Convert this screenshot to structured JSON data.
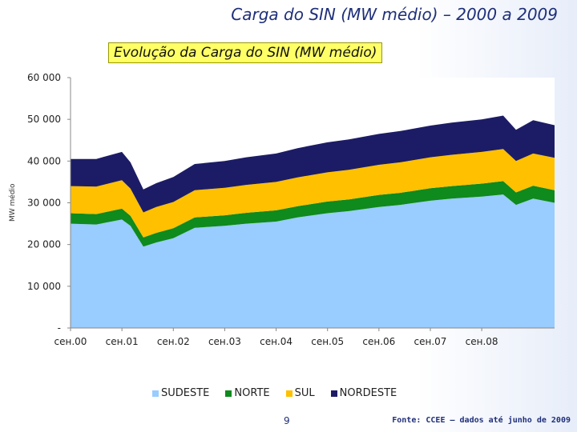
{
  "slide": {
    "title": "Carga do SIN  (MW médio) – 2000 a 2009",
    "page_number": "9",
    "footnote": "Fonte: CCEE – dados até junho de 2009"
  },
  "colors": {
    "SUDESTE": "#99ccff",
    "NORTE": "#0f8a1c",
    "SUL": "#ffc000",
    "NORDESTE": "#1c1c66"
  },
  "chart_data": {
    "type": "area",
    "stacked": true,
    "title": "Evolução da Carga do SIN  (MW médio)",
    "ylabel": "MW médio",
    "ylim": [
      0,
      60000
    ],
    "yticks": [
      {
        "value": 0,
        "label": "-"
      },
      {
        "value": 10000,
        "label": "10 000"
      },
      {
        "value": 20000,
        "label": "20 000"
      },
      {
        "value": 30000,
        "label": "30 000"
      },
      {
        "value": 40000,
        "label": "40 000"
      },
      {
        "value": 50000,
        "label": "50 000"
      },
      {
        "value": 60000,
        "label": "60 000"
      }
    ],
    "xlim": [
      "2000-01",
      "2009-06"
    ],
    "xticks": [
      {
        "date": "2000-01",
        "label": "сен.00"
      },
      {
        "date": "2001-01",
        "label": "сен.01"
      },
      {
        "date": "2002-01",
        "label": "сен.02"
      },
      {
        "date": "2003-01",
        "label": "сен.03"
      },
      {
        "date": "2004-01",
        "label": "сен.04"
      },
      {
        "date": "2005-01",
        "label": "сен.05"
      },
      {
        "date": "2006-01",
        "label": "сен.06"
      },
      {
        "date": "2007-01",
        "label": "сен.07"
      },
      {
        "date": "2008-01",
        "label": "сен.08"
      }
    ],
    "legend_position": "bottom",
    "x": [
      "2000-01",
      "2000-07",
      "2001-01",
      "2001-03",
      "2001-06",
      "2001-09",
      "2002-01",
      "2002-06",
      "2003-01",
      "2003-06",
      "2004-01",
      "2004-06",
      "2005-01",
      "2005-06",
      "2006-01",
      "2006-06",
      "2007-01",
      "2007-06",
      "2008-01",
      "2008-06",
      "2008-09",
      "2009-01",
      "2009-06"
    ],
    "series": [
      {
        "name": "SUDESTE",
        "values": [
          25000,
          24800,
          26000,
          24500,
          19500,
          20500,
          21500,
          24000,
          24500,
          25000,
          25500,
          26500,
          27500,
          28000,
          29000,
          29500,
          30500,
          31000,
          31500,
          32000,
          29500,
          31000,
          30000
        ]
      },
      {
        "name": "NORTE",
        "values": [
          2500,
          2500,
          2600,
          2400,
          2200,
          2300,
          2400,
          2500,
          2500,
          2600,
          2700,
          2700,
          2800,
          2800,
          2900,
          2900,
          3000,
          3000,
          3100,
          3200,
          3000,
          3100,
          3000
        ]
      },
      {
        "name": "SUL",
        "values": [
          6500,
          6600,
          6800,
          6500,
          6000,
          6200,
          6300,
          6500,
          6600,
          6700,
          6800,
          6900,
          7000,
          7100,
          7200,
          7300,
          7400,
          7500,
          7600,
          7700,
          7500,
          7700,
          7800
        ]
      },
      {
        "name": "NORDESTE",
        "values": [
          6500,
          6600,
          6800,
          6300,
          5500,
          5700,
          6000,
          6300,
          6400,
          6600,
          6800,
          7000,
          7200,
          7300,
          7400,
          7500,
          7600,
          7700,
          7800,
          8000,
          7500,
          8000,
          7800
        ]
      }
    ]
  }
}
